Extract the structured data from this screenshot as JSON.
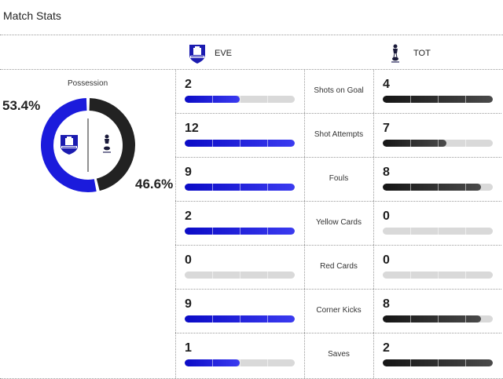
{
  "header": {
    "title": "Match Stats"
  },
  "teams": {
    "home": {
      "abbr": "EVE",
      "color": "#1b1bdc",
      "crest": "everton-crest-icon"
    },
    "away": {
      "abbr": "TOT",
      "color": "#222222",
      "crest": "tottenham-crest-icon"
    }
  },
  "possession": {
    "label": "Possession",
    "home_display": "53.4%",
    "away_display": "46.6%",
    "home_fraction": 0.534,
    "away_fraction": 0.466
  },
  "stats": [
    {
      "label": "Shots on Goal",
      "home": "2",
      "away": "4"
    },
    {
      "label": "Shot Attempts",
      "home": "12",
      "away": "7"
    },
    {
      "label": "Fouls",
      "home": "9",
      "away": "8"
    },
    {
      "label": "Yellow Cards",
      "home": "2",
      "away": "0"
    },
    {
      "label": "Red Cards",
      "home": "0",
      "away": "0"
    },
    {
      "label": "Corner Kicks",
      "home": "9",
      "away": "8"
    },
    {
      "label": "Saves",
      "home": "1",
      "away": "2"
    }
  ],
  "bar_fill_fractions": [
    {
      "home": 0.5,
      "away": 1.0
    },
    {
      "home": 1.0,
      "away": 0.58
    },
    {
      "home": 1.0,
      "away": 0.89
    },
    {
      "home": 1.0,
      "away": 0.0
    },
    {
      "home": 0.0,
      "away": 0.0
    },
    {
      "home": 1.0,
      "away": 0.89
    },
    {
      "home": 0.5,
      "away": 1.0
    }
  ]
}
